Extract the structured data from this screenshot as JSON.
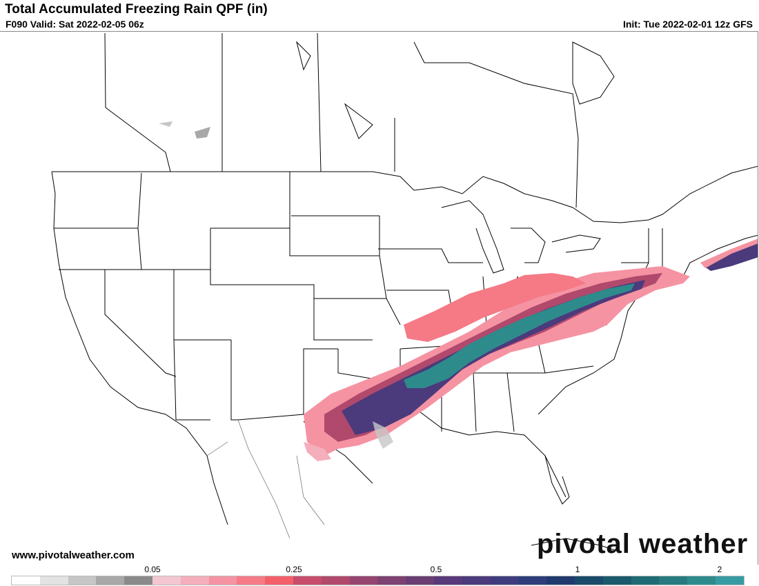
{
  "header": {
    "title": "Total Accumulated Freezing Rain QPF (in)",
    "valid": "F090 Valid: Sat 2022-02-05 06z",
    "init": "Init: Tue 2022-02-01 12z GFS"
  },
  "footer": {
    "website": "www.pivotalweather.com",
    "logo_text": "pivotal weather"
  },
  "legend": {
    "tick_labels": [
      "0.05",
      "0.25",
      "0.5",
      "1",
      "2"
    ],
    "colors": [
      "#ffffff",
      "#e2e2e2",
      "#c6c6c6",
      "#a8a8a8",
      "#8a8a8a",
      "#f3c6d2",
      "#f4aebc",
      "#f593a2",
      "#f57a86",
      "#f4606a",
      "#c84c6c",
      "#b0496c",
      "#954570",
      "#7d4271",
      "#6a3e72",
      "#58397a",
      "#4b3a7c",
      "#3f3c7e",
      "#2f3d7a",
      "#203a6e",
      "#1a4a6a",
      "#1a5a6c",
      "#1f6b74",
      "#277b80",
      "#2e8b8c",
      "#379ba4"
    ],
    "units": "in"
  },
  "map": {
    "region": "Continental United States",
    "field": "freezing rain accumulation"
  }
}
